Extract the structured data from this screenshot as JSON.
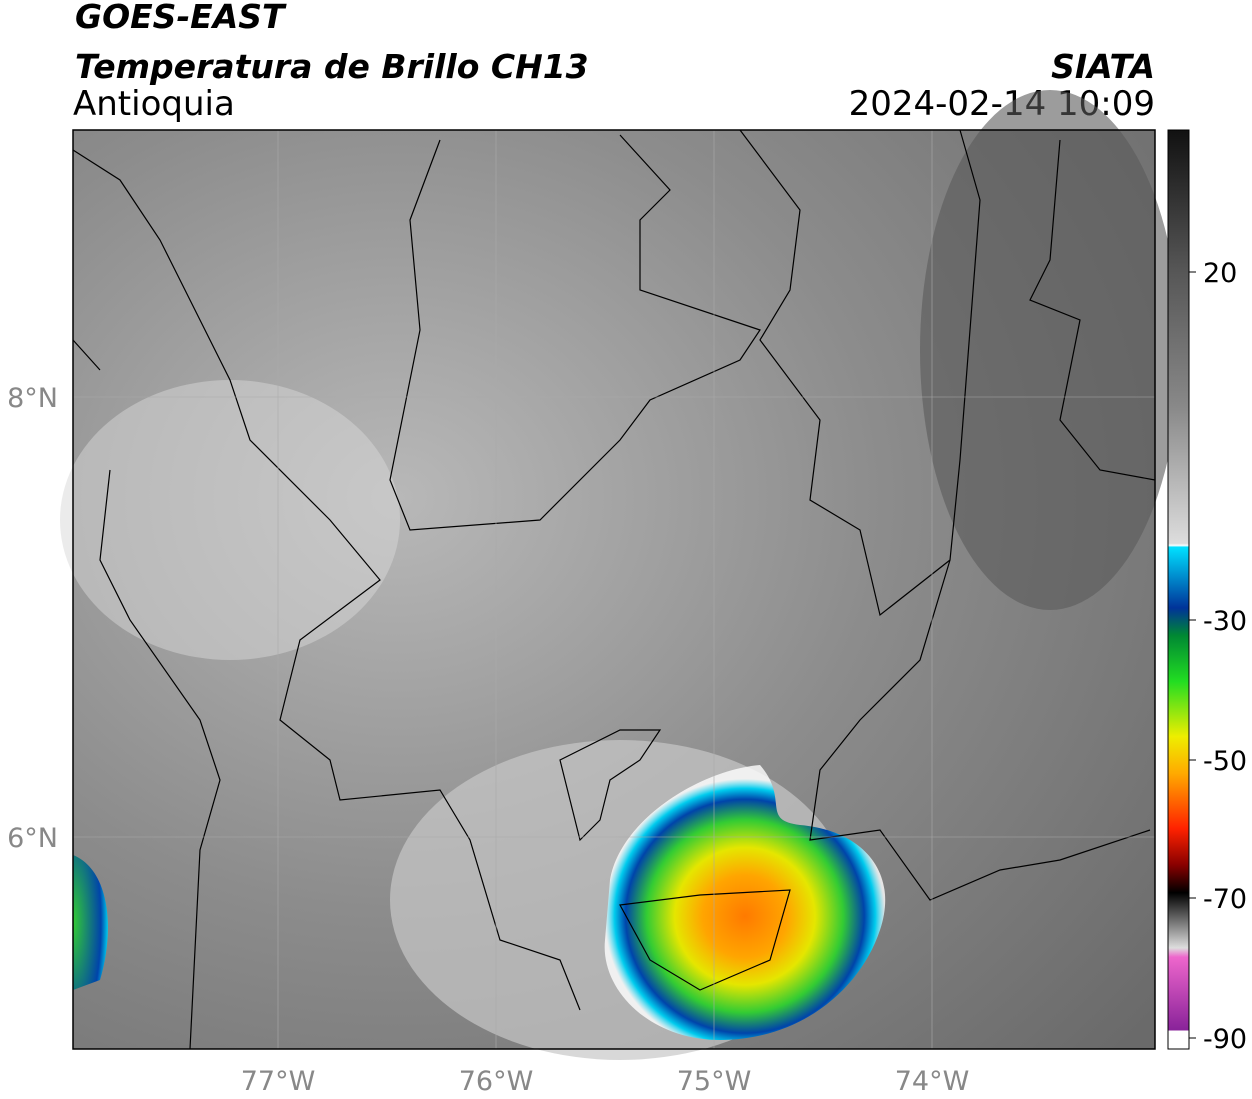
{
  "header": {
    "title": "GOES-EAST",
    "subtitle": "Temperatura de Brillo CH13",
    "region": "Antioquia",
    "source": "SIATA",
    "timestamp": "2024-02-14 10:09"
  },
  "map": {
    "lat_labels": [
      "8°N",
      "6°N"
    ],
    "lon_labels": [
      "77°W",
      "76°W",
      "75°W",
      "74°W"
    ]
  },
  "colorbar": {
    "ticks": [
      "20",
      "-30",
      "-50",
      "-70",
      "-90"
    ]
  }
}
